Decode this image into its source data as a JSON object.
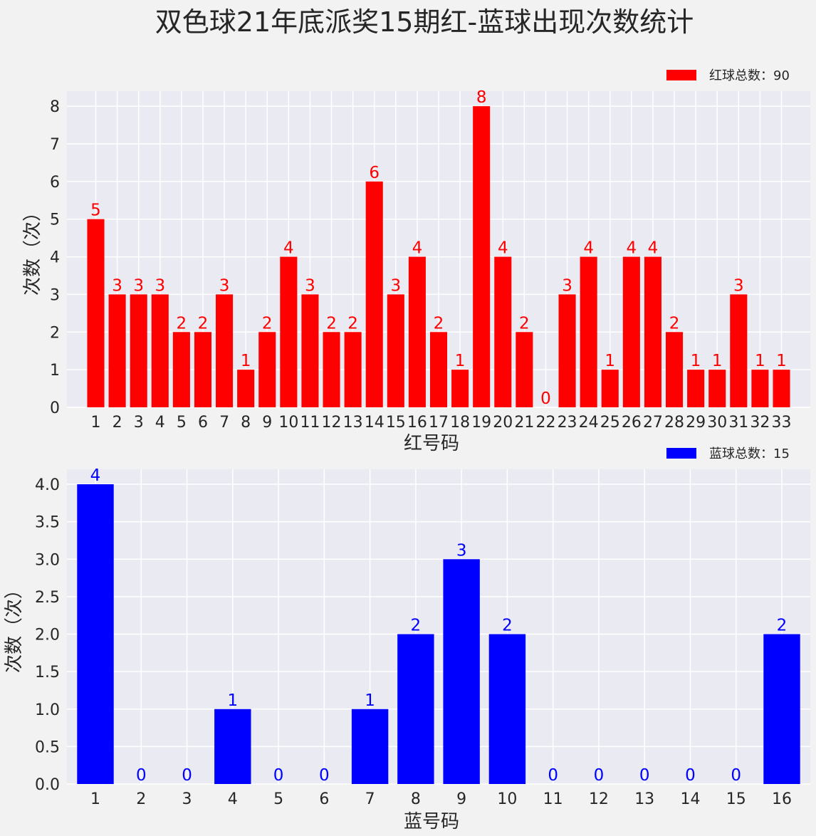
{
  "title": "双色球21年底派奖15期红-蓝球出现次数统计",
  "chart_data": [
    {
      "type": "bar",
      "name": "red-chart",
      "xlabel": "红号码",
      "ylabel": "次数（次）",
      "legend": "红球总数：90",
      "legend_position": "top-right",
      "color": "#ff0000",
      "grid": true,
      "ylim": [
        0,
        8.4
      ],
      "yticks": [
        "0",
        "1",
        "2",
        "3",
        "4",
        "5",
        "6",
        "7",
        "8"
      ],
      "categories": [
        "1",
        "2",
        "3",
        "4",
        "5",
        "6",
        "7",
        "8",
        "9",
        "10",
        "11",
        "12",
        "13",
        "14",
        "15",
        "16",
        "17",
        "18",
        "19",
        "20",
        "21",
        "22",
        "23",
        "24",
        "25",
        "26",
        "27",
        "28",
        "29",
        "30",
        "31",
        "32",
        "33"
      ],
      "values": [
        5,
        3,
        3,
        3,
        2,
        2,
        3,
        1,
        2,
        4,
        3,
        2,
        2,
        6,
        3,
        4,
        2,
        1,
        8,
        4,
        2,
        0,
        3,
        4,
        1,
        4,
        4,
        2,
        1,
        1,
        3,
        1,
        1
      ]
    },
    {
      "type": "bar",
      "name": "blue-chart",
      "xlabel": "蓝号码",
      "ylabel": "次数（次）",
      "legend": "蓝球总数：15",
      "legend_position": "top-right",
      "color": "#0000ff",
      "grid": true,
      "ylim": [
        0,
        4.2
      ],
      "yticks": [
        "0.0",
        "0.5",
        "1.0",
        "1.5",
        "2.0",
        "2.5",
        "3.0",
        "3.5",
        "4.0"
      ],
      "categories": [
        "1",
        "2",
        "3",
        "4",
        "5",
        "6",
        "7",
        "8",
        "9",
        "10",
        "11",
        "12",
        "13",
        "14",
        "15",
        "16"
      ],
      "values": [
        4,
        0,
        0,
        1,
        0,
        0,
        1,
        2,
        3,
        2,
        0,
        0,
        0,
        0,
        0,
        2
      ]
    }
  ]
}
